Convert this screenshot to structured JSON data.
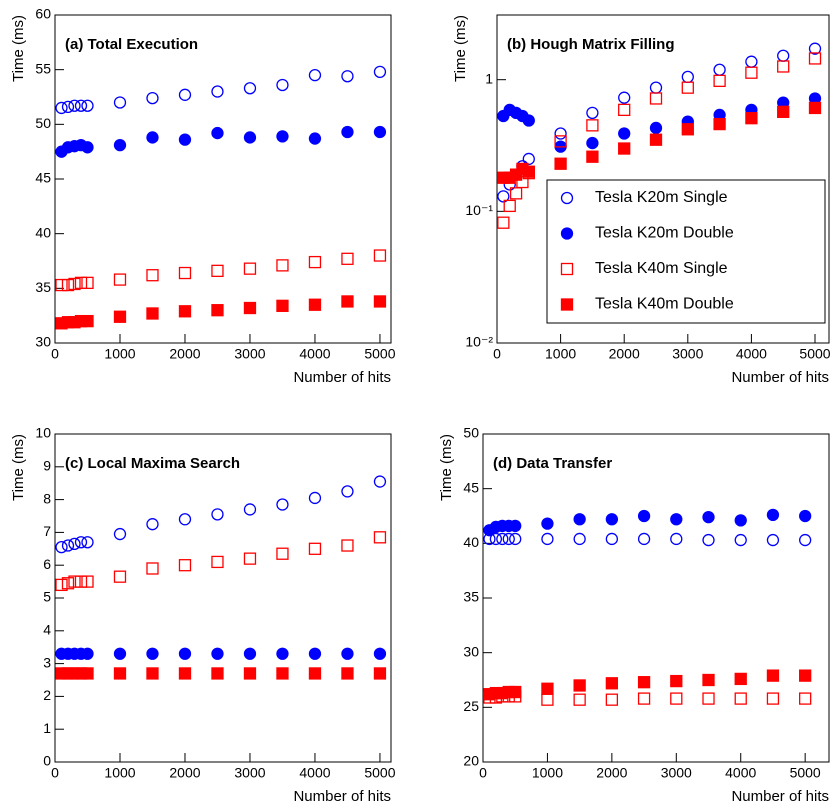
{
  "chart_data": [
    {
      "type": "scatter",
      "title": "(a) Total Execution",
      "xlabel": "Number of hits",
      "ylabel": "Time (ms)",
      "x": [
        100,
        200,
        300,
        400,
        500,
        1000,
        1500,
        2000,
        2500,
        3000,
        3500,
        4000,
        4500,
        5000
      ],
      "xlim": [
        0,
        5170
      ],
      "xticks": [
        0,
        1000,
        2000,
        3000,
        4000,
        5000
      ],
      "ylim": [
        30,
        60
      ],
      "yticks": [
        30,
        35,
        40,
        45,
        50,
        55,
        60
      ],
      "series": [
        {
          "color": "#0000ff",
          "marker": "circle-open",
          "values": [
            51.5,
            51.6,
            51.7,
            51.7,
            51.7,
            52.0,
            52.4,
            52.7,
            53.0,
            53.3,
            53.6,
            54.5,
            54.4,
            54.8
          ]
        },
        {
          "color": "#0000ff",
          "marker": "circle",
          "values": [
            47.5,
            47.9,
            48.0,
            48.1,
            47.9,
            48.1,
            48.8,
            48.6,
            49.2,
            48.8,
            48.9,
            48.7,
            49.3,
            49.3
          ]
        },
        {
          "color": "#ff0000",
          "marker": "square-open",
          "values": [
            35.3,
            35.3,
            35.4,
            35.5,
            35.5,
            35.8,
            36.2,
            36.4,
            36.6,
            36.8,
            37.1,
            37.4,
            37.7,
            38.0
          ]
        },
        {
          "color": "#ff0000",
          "marker": "square",
          "values": [
            31.8,
            31.9,
            31.9,
            32.0,
            32.0,
            32.4,
            32.7,
            32.9,
            33.0,
            33.2,
            33.4,
            33.5,
            33.8,
            33.8
          ]
        }
      ]
    },
    {
      "type": "scatter",
      "title": "(b) Hough Matrix Filling",
      "xlabel": "Number of hits",
      "ylabel": "Time (ms)",
      "x": [
        100,
        200,
        300,
        400,
        500,
        1000,
        1500,
        2000,
        2500,
        3000,
        3500,
        4000,
        4500,
        5000
      ],
      "xlim": [
        0,
        5220
      ],
      "xticks": [
        0,
        1000,
        2000,
        3000,
        4000,
        5000
      ],
      "log_y": true,
      "ylim": [
        0.01,
        3.1
      ],
      "yticks": [
        {
          "value": 0.01,
          "label": "10⁻²"
        },
        {
          "value": 0.1,
          "label": "10⁻¹"
        },
        1
      ],
      "legend": "center-right",
      "series": [
        {
          "name": "Tesla K20m Single",
          "color": "#0000ff",
          "marker": "circle-open",
          "values": [
            0.13,
            0.16,
            0.19,
            0.22,
            0.25,
            0.39,
            0.56,
            0.73,
            0.87,
            1.05,
            1.19,
            1.37,
            1.52,
            1.72
          ]
        },
        {
          "name": "Tesla K20m Double",
          "color": "#0000ff",
          "marker": "circle",
          "values": [
            0.53,
            0.59,
            0.56,
            0.53,
            0.49,
            0.31,
            0.33,
            0.39,
            0.43,
            0.48,
            0.54,
            0.59,
            0.67,
            0.72
          ]
        },
        {
          "name": "Tesla K40m Single",
          "color": "#ff0000",
          "marker": "square-open",
          "values": [
            0.082,
            0.11,
            0.137,
            0.167,
            0.195,
            0.34,
            0.45,
            0.59,
            0.72,
            0.87,
            0.98,
            1.13,
            1.26,
            1.45
          ]
        },
        {
          "name": "Tesla K40m Double",
          "color": "#ff0000",
          "marker": "square",
          "values": [
            0.18,
            0.18,
            0.19,
            0.21,
            0.2,
            0.23,
            0.26,
            0.3,
            0.35,
            0.42,
            0.46,
            0.51,
            0.57,
            0.61
          ]
        }
      ]
    },
    {
      "type": "scatter",
      "title": "(c) Local Maxima Search",
      "xlabel": "Number of hits",
      "ylabel": "Time (ms)",
      "x": [
        100,
        200,
        300,
        400,
        500,
        1000,
        1500,
        2000,
        2500,
        3000,
        3500,
        4000,
        4500,
        5000
      ],
      "xlim": [
        0,
        5170
      ],
      "xticks": [
        0,
        1000,
        2000,
        3000,
        4000,
        5000
      ],
      "ylim": [
        0,
        10
      ],
      "yticks": [
        0,
        1,
        2,
        3,
        4,
        5,
        6,
        7,
        8,
        9,
        10
      ],
      "series": [
        {
          "color": "#0000ff",
          "marker": "circle-open",
          "values": [
            6.55,
            6.6,
            6.65,
            6.7,
            6.7,
            6.95,
            7.25,
            7.4,
            7.55,
            7.7,
            7.85,
            8.05,
            8.25,
            8.55
          ]
        },
        {
          "color": "#0000ff",
          "marker": "circle",
          "values": [
            3.3,
            3.3,
            3.3,
            3.3,
            3.3,
            3.3,
            3.3,
            3.3,
            3.3,
            3.3,
            3.3,
            3.3,
            3.3,
            3.3
          ]
        },
        {
          "color": "#ff0000",
          "marker": "square-open",
          "values": [
            5.4,
            5.45,
            5.5,
            5.5,
            5.5,
            5.65,
            5.9,
            6.0,
            6.1,
            6.2,
            6.35,
            6.5,
            6.6,
            6.85
          ]
        },
        {
          "color": "#ff0000",
          "marker": "square",
          "values": [
            2.7,
            2.7,
            2.7,
            2.7,
            2.7,
            2.7,
            2.7,
            2.7,
            2.7,
            2.7,
            2.7,
            2.7,
            2.7,
            2.7
          ]
        }
      ]
    },
    {
      "type": "scatter",
      "title": "(d) Data Transfer",
      "xlabel": "Number of hits",
      "ylabel": "Time (ms)",
      "x": [
        100,
        200,
        300,
        400,
        500,
        1000,
        1500,
        2000,
        2500,
        3000,
        3500,
        4000,
        4500,
        5000
      ],
      "xlim": [
        0,
        5370
      ],
      "xticks": [
        0,
        1000,
        2000,
        3000,
        4000,
        5000
      ],
      "ylim": [
        20,
        50
      ],
      "yticks": [
        20,
        25,
        30,
        35,
        40,
        45,
        50
      ],
      "series": [
        {
          "color": "#0000ff",
          "marker": "circle-open",
          "values": [
            40.4,
            40.4,
            40.4,
            40.4,
            40.4,
            40.4,
            40.4,
            40.4,
            40.4,
            40.4,
            40.3,
            40.3,
            40.3,
            40.3
          ]
        },
        {
          "color": "#0000ff",
          "marker": "circle",
          "values": [
            41.2,
            41.5,
            41.6,
            41.6,
            41.6,
            41.8,
            42.2,
            42.2,
            42.5,
            42.2,
            42.4,
            42.1,
            42.6,
            42.5
          ]
        },
        {
          "color": "#ff0000",
          "marker": "square-open",
          "values": [
            25.9,
            25.9,
            26.0,
            26.0,
            26.0,
            25.7,
            25.7,
            25.7,
            25.8,
            25.8,
            25.8,
            25.8,
            25.8,
            25.8
          ]
        },
        {
          "color": "#ff0000",
          "marker": "square",
          "values": [
            26.2,
            26.3,
            26.3,
            26.4,
            26.4,
            26.7,
            27.0,
            27.2,
            27.3,
            27.4,
            27.5,
            27.6,
            27.9,
            27.9
          ]
        }
      ]
    }
  ]
}
